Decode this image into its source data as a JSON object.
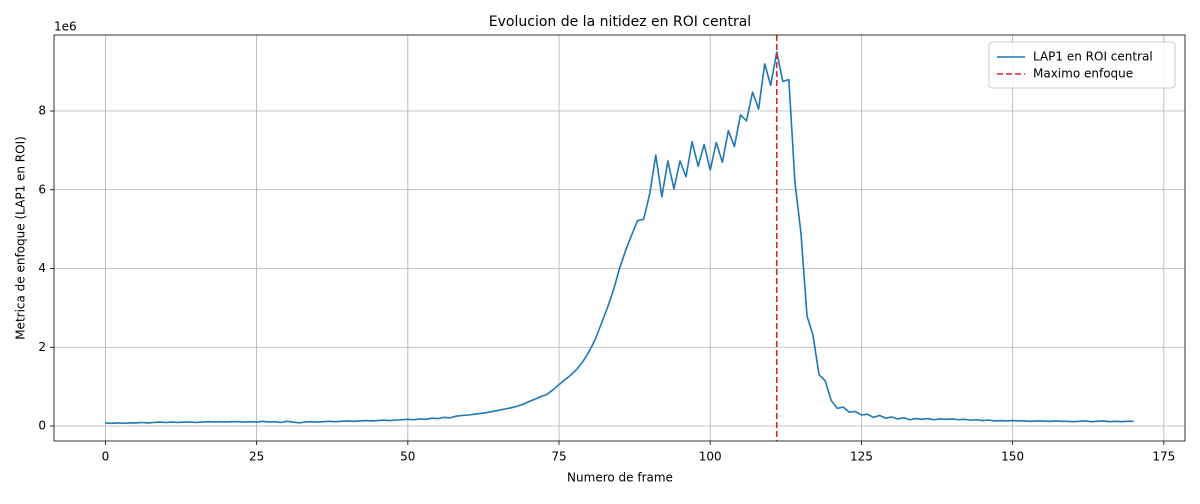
{
  "chart_data": {
    "type": "line",
    "title": "Evolucion de la nitidez en ROI central",
    "xlabel": "Numero de frame",
    "ylabel": "Metrica de enfoque (LAP1 en ROI)",
    "y_offset_label": "1e6",
    "x": [
      0,
      1,
      2,
      3,
      4,
      5,
      6,
      7,
      8,
      9,
      10,
      11,
      12,
      13,
      14,
      15,
      16,
      17,
      18,
      19,
      20,
      21,
      22,
      23,
      24,
      25,
      26,
      27,
      28,
      29,
      30,
      31,
      32,
      33,
      34,
      35,
      36,
      37,
      38,
      39,
      40,
      41,
      42,
      43,
      44,
      45,
      46,
      47,
      48,
      49,
      50,
      51,
      52,
      53,
      54,
      55,
      56,
      57,
      58,
      59,
      60,
      61,
      62,
      63,
      64,
      65,
      66,
      67,
      68,
      69,
      70,
      71,
      72,
      73,
      74,
      75,
      76,
      77,
      78,
      79,
      80,
      81,
      82,
      83,
      84,
      85,
      86,
      87,
      88,
      89,
      90,
      91,
      92,
      93,
      94,
      95,
      96,
      97,
      98,
      99,
      100,
      101,
      102,
      103,
      104,
      105,
      106,
      107,
      108,
      109,
      110,
      111,
      112,
      113,
      114,
      115,
      116,
      117,
      118,
      119,
      120,
      121,
      122,
      123,
      124,
      125,
      126,
      127,
      128,
      129,
      130,
      131,
      132,
      133,
      134,
      135,
      136,
      137,
      138,
      139,
      140,
      141,
      142,
      143,
      144,
      145,
      146,
      147,
      148,
      149,
      150,
      151,
      152,
      153,
      154,
      155,
      156,
      157,
      158,
      159,
      160,
      161,
      162,
      163,
      164,
      165,
      166,
      167,
      168,
      169,
      170
    ],
    "series": [
      {
        "name": "LAP1 en ROI central",
        "color": "#1f77b4",
        "values": [
          0.08,
          0.07,
          0.08,
          0.07,
          0.08,
          0.08,
          0.09,
          0.08,
          0.09,
          0.1,
          0.09,
          0.1,
          0.09,
          0.1,
          0.1,
          0.09,
          0.1,
          0.11,
          0.1,
          0.11,
          0.1,
          0.11,
          0.11,
          0.1,
          0.11,
          0.1,
          0.12,
          0.1,
          0.11,
          0.09,
          0.12,
          0.1,
          0.08,
          0.1,
          0.11,
          0.1,
          0.11,
          0.12,
          0.11,
          0.12,
          0.13,
          0.12,
          0.13,
          0.14,
          0.13,
          0.14,
          0.15,
          0.14,
          0.15,
          0.16,
          0.17,
          0.16,
          0.18,
          0.17,
          0.2,
          0.19,
          0.22,
          0.21,
          0.25,
          0.27,
          0.28,
          0.3,
          0.32,
          0.34,
          0.37,
          0.4,
          0.43,
          0.46,
          0.5,
          0.55,
          0.62,
          0.68,
          0.75,
          0.8,
          0.92,
          1.05,
          1.18,
          1.3,
          1.45,
          1.65,
          1.9,
          2.2,
          2.6,
          3.0,
          3.45,
          4.0,
          4.45,
          4.85,
          5.22,
          5.25,
          5.9,
          6.88,
          5.82,
          6.73,
          6.02,
          6.73,
          6.33,
          7.22,
          6.6,
          7.15,
          6.5,
          7.2,
          6.7,
          7.5,
          7.1,
          7.9,
          7.75,
          8.48,
          8.05,
          9.2,
          8.65,
          9.5,
          8.75,
          8.8,
          6.2,
          4.9,
          2.8,
          2.3,
          1.3,
          1.15,
          0.65,
          0.45,
          0.48,
          0.35,
          0.37,
          0.28,
          0.3,
          0.22,
          0.27,
          0.2,
          0.23,
          0.18,
          0.21,
          0.16,
          0.19,
          0.17,
          0.19,
          0.16,
          0.18,
          0.17,
          0.18,
          0.16,
          0.17,
          0.15,
          0.16,
          0.14,
          0.15,
          0.13,
          0.14,
          0.13,
          0.14,
          0.13,
          0.13,
          0.12,
          0.13,
          0.13,
          0.12,
          0.13,
          0.12,
          0.12,
          0.11,
          0.12,
          0.13,
          0.11,
          0.12,
          0.13,
          0.11,
          0.12,
          0.11,
          0.12,
          0.12
        ]
      }
    ],
    "vlines": [
      {
        "name": "Maximo enfoque",
        "x": 111,
        "color": "#d62728"
      }
    ],
    "xlim": [
      -8.5,
      178.5
    ],
    "ylim": [
      -0.38,
      9.93
    ],
    "xticks": [
      0,
      25,
      50,
      75,
      100,
      125,
      150,
      175
    ],
    "yticks": [
      0,
      2,
      4,
      6,
      8
    ],
    "grid": true,
    "legend": "upper right"
  }
}
